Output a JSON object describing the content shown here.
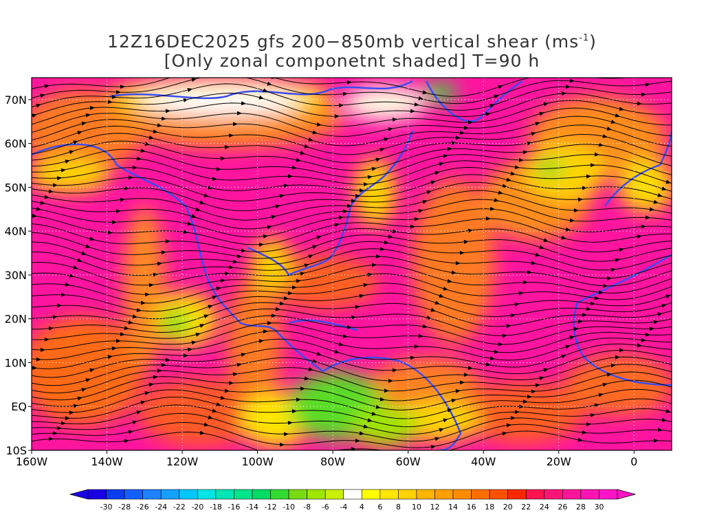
{
  "title": {
    "line1_prefix": "12Z16DEC2025 gfs 200−850mb vertical shear (ms",
    "line1_sup": "-1",
    "line1_suffix": ")",
    "line2": "[Only zonal componetnt shaded] T=90 h"
  },
  "map": {
    "lat_labels": [
      "70N",
      "60N",
      "50N",
      "40N",
      "30N",
      "20N",
      "10N",
      "EQ",
      "10S"
    ],
    "lat_values": [
      70,
      60,
      50,
      40,
      30,
      20,
      10,
      0,
      -10
    ],
    "lon_labels": [
      "160W",
      "140W",
      "120W",
      "100W",
      "80W",
      "60W",
      "40W",
      "20W",
      "0"
    ],
    "lon_values": [
      -160,
      -140,
      -120,
      -100,
      -80,
      -60,
      -40,
      -20,
      0
    ],
    "lat_range": [
      -10,
      75
    ],
    "lon_range": [
      -160,
      10
    ],
    "coastline_color": "#3a4cf0",
    "contour_color": "#8020a0",
    "streamline_color": "#000000",
    "grid": "dotted white"
  },
  "colorbar": {
    "labels": [
      "-30",
      "-28",
      "-26",
      "-24",
      "-22",
      "-20",
      "-18",
      "-16",
      "-14",
      "-12",
      "-10",
      "-8",
      "-6",
      "-4",
      "4",
      "6",
      "8",
      "10",
      "12",
      "14",
      "16",
      "18",
      "20",
      "22",
      "24",
      "26",
      "28",
      "30"
    ],
    "colors": [
      "#1a00e6",
      "#0a3cf0",
      "#1460ff",
      "#1e82ff",
      "#14a0ff",
      "#00c8ff",
      "#00e6e6",
      "#00e6b4",
      "#00e68c",
      "#00dc64",
      "#32dc32",
      "#78dc14",
      "#a0e600",
      "#c8f000",
      "#ffffff",
      "#ffff00",
      "#ffe600",
      "#ffd200",
      "#ffb400",
      "#ffa000",
      "#ff8c00",
      "#ff6e00",
      "#ff5000",
      "#ff2800",
      "#ff1450",
      "#ff1478",
      "#ff149b",
      "#ff14b4",
      "#ff14c8"
    ]
  }
}
